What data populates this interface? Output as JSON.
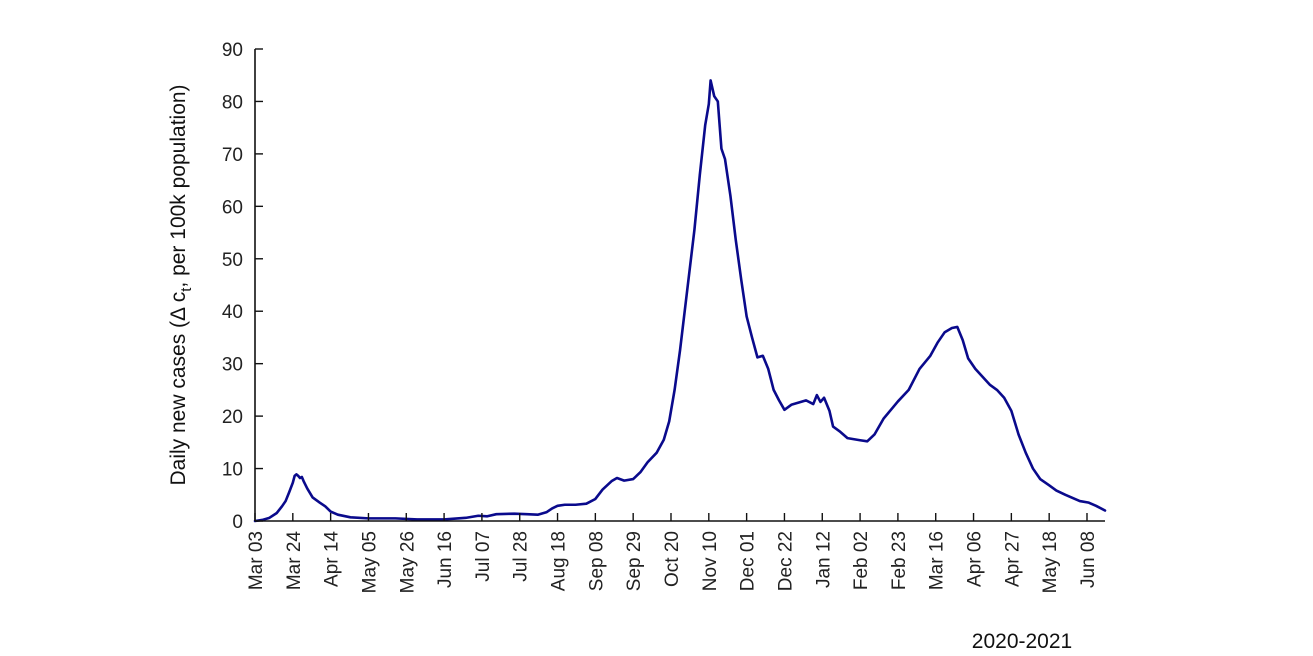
{
  "chart_data": {
    "type": "line",
    "title": "",
    "xlabel": "2020-2021",
    "ylabel_main": "Daily new cases (",
    "ylabel_symbol": "Δ c",
    "ylabel_sub": "t",
    "ylabel_rest": ", per 100k population)",
    "ylim": [
      0,
      90
    ],
    "yticks": [
      0,
      10,
      20,
      30,
      40,
      50,
      60,
      70,
      80,
      90
    ],
    "xlim": [
      "2020-03-03",
      "2021-06-18"
    ],
    "xticks": [
      {
        "date": "2020-03-03",
        "label": "Mar 03"
      },
      {
        "date": "2020-03-24",
        "label": "Mar 24"
      },
      {
        "date": "2020-04-14",
        "label": "Apr 14"
      },
      {
        "date": "2020-05-05",
        "label": "May 05"
      },
      {
        "date": "2020-05-26",
        "label": "May 26"
      },
      {
        "date": "2020-06-16",
        "label": "Jun 16"
      },
      {
        "date": "2020-07-07",
        "label": "Jul 07"
      },
      {
        "date": "2020-07-28",
        "label": "Jul 28"
      },
      {
        "date": "2020-08-18",
        "label": "Aug 18"
      },
      {
        "date": "2020-09-08",
        "label": "Sep 08"
      },
      {
        "date": "2020-09-29",
        "label": "Sep 29"
      },
      {
        "date": "2020-10-20",
        "label": "Oct 20"
      },
      {
        "date": "2020-11-10",
        "label": "Nov 10"
      },
      {
        "date": "2020-12-01",
        "label": "Dec 01"
      },
      {
        "date": "2020-12-22",
        "label": "Dec 22"
      },
      {
        "date": "2021-01-12",
        "label": "Jan 12"
      },
      {
        "date": "2021-02-02",
        "label": "Feb 02"
      },
      {
        "date": "2021-02-23",
        "label": "Feb 23"
      },
      {
        "date": "2021-03-16",
        "label": "Mar 16"
      },
      {
        "date": "2021-04-06",
        "label": "Apr 06"
      },
      {
        "date": "2021-04-27",
        "label": "Apr 27"
      },
      {
        "date": "2021-05-18",
        "label": "May 18"
      },
      {
        "date": "2021-06-08",
        "label": "Jun 08"
      }
    ],
    "grid": false,
    "series": [
      {
        "color": "#0a0a8c",
        "points": [
          [
            "2020-03-03",
            0.0
          ],
          [
            "2020-03-07",
            0.2
          ],
          [
            "2020-03-11",
            0.6
          ],
          [
            "2020-03-15",
            1.5
          ],
          [
            "2020-03-18",
            2.8
          ],
          [
            "2020-03-20",
            3.8
          ],
          [
            "2020-03-22",
            5.5
          ],
          [
            "2020-03-24",
            7.3
          ],
          [
            "2020-03-25",
            8.6
          ],
          [
            "2020-03-26",
            8.9
          ],
          [
            "2020-03-27",
            8.6
          ],
          [
            "2020-03-28",
            8.2
          ],
          [
            "2020-03-29",
            8.4
          ],
          [
            "2020-03-30",
            7.6
          ],
          [
            "2020-04-01",
            6.2
          ],
          [
            "2020-04-04",
            4.5
          ],
          [
            "2020-04-08",
            3.5
          ],
          [
            "2020-04-11",
            2.8
          ],
          [
            "2020-04-14",
            1.8
          ],
          [
            "2020-04-18",
            1.2
          ],
          [
            "2020-04-25",
            0.7
          ],
          [
            "2020-05-05",
            0.5
          ],
          [
            "2020-05-20",
            0.5
          ],
          [
            "2020-06-01",
            0.3
          ],
          [
            "2020-06-16",
            0.3
          ],
          [
            "2020-06-28",
            0.6
          ],
          [
            "2020-07-05",
            1.0
          ],
          [
            "2020-07-10",
            0.9
          ],
          [
            "2020-07-15",
            1.3
          ],
          [
            "2020-07-25",
            1.4
          ],
          [
            "2020-08-01",
            1.3
          ],
          [
            "2020-08-07",
            1.2
          ],
          [
            "2020-08-12",
            1.7
          ],
          [
            "2020-08-15",
            2.4
          ],
          [
            "2020-08-18",
            2.9
          ],
          [
            "2020-08-22",
            3.1
          ],
          [
            "2020-08-28",
            3.1
          ],
          [
            "2020-09-03",
            3.3
          ],
          [
            "2020-09-08",
            4.2
          ],
          [
            "2020-09-12",
            6.0
          ],
          [
            "2020-09-17",
            7.6
          ],
          [
            "2020-09-20",
            8.2
          ],
          [
            "2020-09-24",
            7.7
          ],
          [
            "2020-09-29",
            8.0
          ],
          [
            "2020-10-03",
            9.3
          ],
          [
            "2020-10-07",
            11.2
          ],
          [
            "2020-10-12",
            13.0
          ],
          [
            "2020-10-16",
            15.5
          ],
          [
            "2020-10-19",
            19.0
          ],
          [
            "2020-10-22",
            25.0
          ],
          [
            "2020-10-25",
            32.5
          ],
          [
            "2020-10-29",
            44.0
          ],
          [
            "2020-11-02",
            55.5
          ],
          [
            "2020-11-05",
            66.0
          ],
          [
            "2020-11-08",
            75.5
          ],
          [
            "2020-11-10",
            79.5
          ],
          [
            "2020-11-11",
            84.0
          ],
          [
            "2020-11-13",
            81.0
          ],
          [
            "2020-11-15",
            80.0
          ],
          [
            "2020-11-17",
            71.0
          ],
          [
            "2020-11-19",
            69.0
          ],
          [
            "2020-11-22",
            62.0
          ],
          [
            "2020-11-25",
            53.5
          ],
          [
            "2020-11-28",
            46.0
          ],
          [
            "2020-12-01",
            39.0
          ],
          [
            "2020-12-04",
            35.0
          ],
          [
            "2020-12-07",
            31.2
          ],
          [
            "2020-12-10",
            31.5
          ],
          [
            "2020-12-13",
            29.0
          ],
          [
            "2020-12-16",
            25.0
          ],
          [
            "2020-12-19",
            23.0
          ],
          [
            "2020-12-22",
            21.2
          ],
          [
            "2020-12-26",
            22.2
          ],
          [
            "2020-12-30",
            22.6
          ],
          [
            "2021-01-03",
            23.0
          ],
          [
            "2021-01-07",
            22.3
          ],
          [
            "2021-01-09",
            24.0
          ],
          [
            "2021-01-11",
            22.7
          ],
          [
            "2021-01-13",
            23.5
          ],
          [
            "2021-01-16",
            21.0
          ],
          [
            "2021-01-18",
            18.0
          ],
          [
            "2021-01-22",
            17.0
          ],
          [
            "2021-01-26",
            15.8
          ],
          [
            "2021-02-02",
            15.4
          ],
          [
            "2021-02-06",
            15.2
          ],
          [
            "2021-02-10",
            16.5
          ],
          [
            "2021-02-15",
            19.5
          ],
          [
            "2021-02-23",
            22.8
          ],
          [
            "2021-03-01",
            25.0
          ],
          [
            "2021-03-07",
            29.0
          ],
          [
            "2021-03-13",
            31.5
          ],
          [
            "2021-03-17",
            34.0
          ],
          [
            "2021-03-21",
            36.0
          ],
          [
            "2021-03-25",
            36.8
          ],
          [
            "2021-03-28",
            37.0
          ],
          [
            "2021-03-31",
            34.5
          ],
          [
            "2021-04-03",
            31.0
          ],
          [
            "2021-04-07",
            29.0
          ],
          [
            "2021-04-11",
            27.5
          ],
          [
            "2021-04-15",
            26.0
          ],
          [
            "2021-04-19",
            25.0
          ],
          [
            "2021-04-23",
            23.5
          ],
          [
            "2021-04-27",
            21.0
          ],
          [
            "2021-05-01",
            16.5
          ],
          [
            "2021-05-05",
            13.0
          ],
          [
            "2021-05-09",
            10.0
          ],
          [
            "2021-05-13",
            8.0
          ],
          [
            "2021-05-18",
            6.8
          ],
          [
            "2021-05-22",
            5.8
          ],
          [
            "2021-05-27",
            5.0
          ],
          [
            "2021-05-31",
            4.4
          ],
          [
            "2021-06-04",
            3.8
          ],
          [
            "2021-06-09",
            3.5
          ],
          [
            "2021-06-13",
            2.9
          ],
          [
            "2021-06-18",
            2.0
          ]
        ]
      }
    ]
  }
}
